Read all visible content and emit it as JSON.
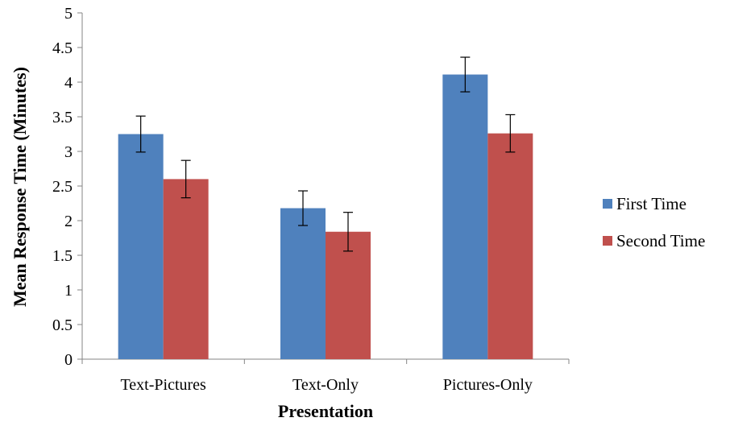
{
  "chart_data": {
    "type": "bar",
    "categories": [
      "Text-Pictures",
      "Text-Only",
      "Pictures-Only"
    ],
    "series": [
      {
        "name": "First Time",
        "color": "#4F81BD",
        "values": [
          3.25,
          2.18,
          4.11
        ],
        "errors": [
          0.26,
          0.25,
          0.25
        ]
      },
      {
        "name": "Second Time",
        "color": "#C0504D",
        "values": [
          2.6,
          1.84,
          3.26
        ],
        "errors": [
          0.27,
          0.28,
          0.27
        ]
      }
    ],
    "title": "",
    "xlabel": "Presentation",
    "ylabel": "Mean Response Time (Minutes)",
    "ylim": [
      0,
      5
    ],
    "yticks": [
      "0",
      "0.5",
      "1",
      "1.5",
      "2",
      "2.5",
      "3",
      "3.5",
      "4",
      "4.5",
      "5"
    ],
    "grid": false,
    "legend_position": "right"
  }
}
